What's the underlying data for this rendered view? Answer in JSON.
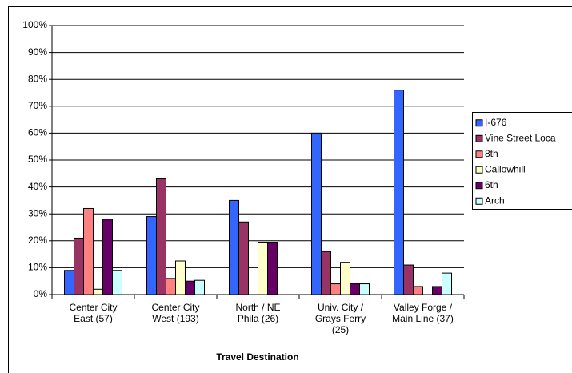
{
  "chart_data": {
    "type": "bar",
    "x_label": "Travel Destination",
    "categories": [
      "Center City\nEast (57)",
      "Center City\nWest (193)",
      "North / NE\nPhila (26)",
      "Univ. City /\nGrays Ferry\n(25)",
      "Valley Forge /\nMain Line (37)"
    ],
    "series": [
      {
        "name": "I-676",
        "color": "#3366ff",
        "values": [
          9,
          29,
          35,
          60,
          76
        ]
      },
      {
        "name": "Vine Street Loca",
        "color": "#993366",
        "values": [
          21,
          43,
          27,
          16,
          11
        ]
      },
      {
        "name": "8th",
        "color": "#ff8080",
        "values": [
          32,
          6,
          0,
          4,
          3
        ]
      },
      {
        "name": "Callowhill",
        "color": "#ffffcc",
        "values": [
          2,
          12.5,
          19.5,
          12,
          0
        ]
      },
      {
        "name": "6th",
        "color": "#660066",
        "values": [
          28,
          5,
          19.5,
          4,
          3
        ]
      },
      {
        "name": "Arch",
        "color": "#ccffff",
        "values": [
          9,
          5.3,
          0,
          4,
          8
        ]
      }
    ],
    "ylim": [
      0,
      100
    ],
    "yticks": [
      {
        "value": 0,
        "label": "0%"
      },
      {
        "value": 10,
        "label": "10%"
      },
      {
        "value": 20,
        "label": "20%"
      },
      {
        "value": 30,
        "label": "30%"
      },
      {
        "value": 40,
        "label": "40%"
      },
      {
        "value": 50,
        "label": "50%"
      },
      {
        "value": 60,
        "label": "60%"
      },
      {
        "value": 70,
        "label": "70%"
      },
      {
        "value": 80,
        "label": "80%"
      },
      {
        "value": 90,
        "label": "90%"
      },
      {
        "value": 100,
        "label": "100%"
      }
    ],
    "grid": true,
    "legend": "right"
  }
}
